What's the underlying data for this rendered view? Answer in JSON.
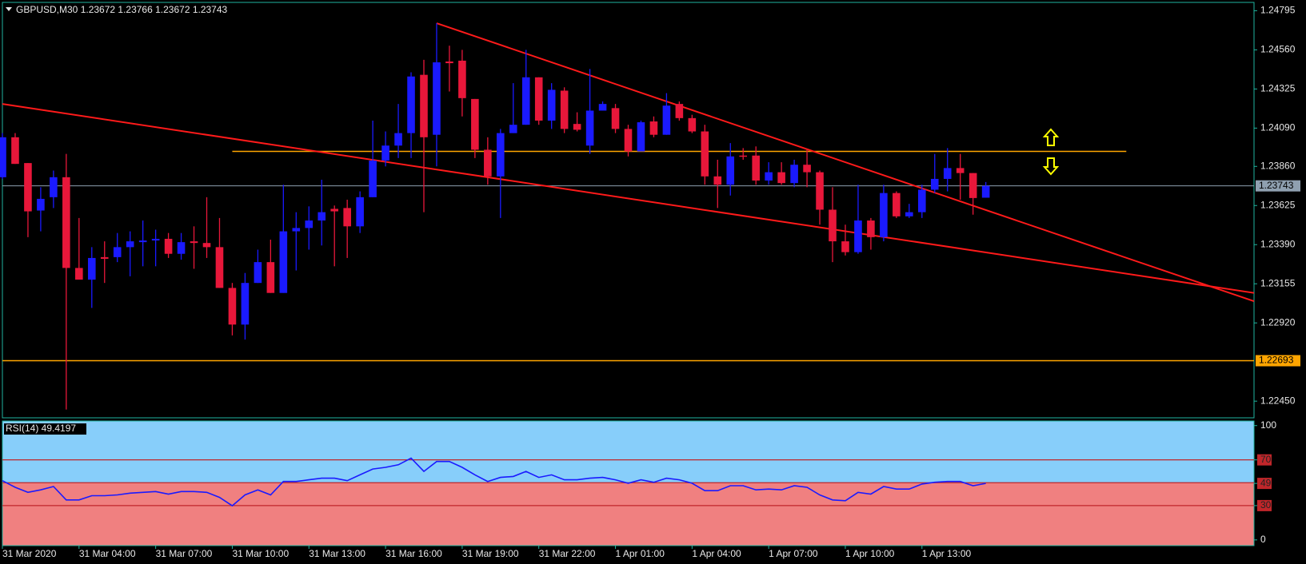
{
  "chart_data": [
    {
      "type": "candlestick",
      "title": "GBPUSD,M30  1.23672 1.23766 1.23672 1.23743",
      "categories": [
        "31 Mar 2020",
        null,
        null,
        null,
        null,
        null,
        "31 Mar 04:00",
        null,
        null,
        null,
        null,
        null,
        "31 Mar 07:00",
        null,
        null,
        null,
        null,
        null,
        "31 Mar 10:00",
        null,
        null,
        null,
        null,
        null,
        "31 Mar 13:00",
        null,
        null,
        null,
        null,
        null,
        "31 Mar 16:00",
        null,
        null,
        null,
        null,
        null,
        "31 Mar 19:00",
        null,
        null,
        null,
        null,
        null,
        "31 Mar 22:00",
        null,
        null,
        null,
        null,
        null,
        "1 Apr 01:00",
        null,
        null,
        null,
        null,
        null,
        "1 Apr 04:00",
        null,
        null,
        null,
        null,
        null,
        "1 Apr 07:00",
        null,
        null,
        null,
        null,
        null,
        "1 Apr 10:00",
        null,
        null,
        null,
        null,
        null,
        "1 Apr 13:00",
        null,
        null,
        null,
        null,
        null
      ],
      "open": [
        1.23795,
        1.24035,
        1.2388,
        1.23595,
        1.23675,
        1.23795,
        1.2325,
        1.2318,
        1.23315,
        1.23315,
        1.23375,
        1.23405,
        1.23415,
        1.23425,
        1.23335,
        1.2341,
        1.234,
        1.23375,
        1.2313,
        1.2291,
        1.2316,
        1.23285,
        1.231,
        1.2347,
        1.2349,
        1.23535,
        1.23605,
        1.2361,
        1.235,
        1.23675,
        1.23895,
        1.23985,
        1.2406,
        1.2441,
        1.2405,
        1.2449,
        1.24495,
        1.24265,
        1.2396,
        1.238,
        1.2406,
        1.2411,
        1.24395,
        1.24135,
        1.24315,
        1.24115,
        1.23985,
        1.24195,
        1.2421,
        1.24085,
        1.2395,
        1.2413,
        1.2405,
        1.24235,
        1.2415,
        1.2407,
        1.238,
        1.2375,
        1.23925,
        1.23925,
        1.23775,
        1.23825,
        1.2376,
        1.2387,
        1.23825,
        1.236,
        1.2341,
        1.23345,
        1.23535,
        1.23435,
        1.237,
        1.2356,
        1.23585,
        1.2372,
        1.23785,
        1.2385,
        1.2382,
        1.23672
      ],
      "high": [
        1.2406,
        1.2406,
        1.2388,
        1.23735,
        1.23835,
        1.23935,
        1.2355,
        1.23375,
        1.2341,
        1.2346,
        1.2347,
        1.23535,
        1.2348,
        1.2346,
        1.2346,
        1.235,
        1.23675,
        1.2355,
        1.2316,
        1.2322,
        1.2336,
        1.2342,
        1.2375,
        1.23585,
        1.2362,
        1.2378,
        1.23625,
        1.2366,
        1.2371,
        1.24135,
        1.2407,
        1.24235,
        1.24425,
        1.245,
        1.2472,
        1.24585,
        1.2456,
        1.24265,
        1.24035,
        1.24085,
        1.2436,
        1.2456,
        1.24395,
        1.2436,
        1.24335,
        1.24185,
        1.24445,
        1.2425,
        1.24235,
        1.2411,
        1.24135,
        1.2416,
        1.243,
        1.2425,
        1.2417,
        1.2411,
        1.239,
        1.24,
        1.2397,
        1.2398,
        1.23885,
        1.23885,
        1.239,
        1.2396,
        1.23835,
        1.23735,
        1.2351,
        1.2375,
        1.2355,
        1.2375,
        1.2371,
        1.23635,
        1.2375,
        1.23935,
        1.2397,
        1.23935,
        1.2382,
        1.23766
      ],
      "low": [
        1.23785,
        1.23875,
        1.23435,
        1.2347,
        1.2361,
        1.224,
        1.2318,
        1.2301,
        1.2316,
        1.23285,
        1.232,
        1.2326,
        1.2326,
        1.2331,
        1.233,
        1.23245,
        1.2331,
        1.2313,
        1.22845,
        1.2282,
        1.2316,
        1.231,
        1.231,
        1.23235,
        1.2336,
        1.23385,
        1.2326,
        1.2331,
        1.2346,
        1.23675,
        1.2386,
        1.2391,
        1.2391,
        1.23585,
        1.2386,
        1.2431,
        1.2416,
        1.2391,
        1.2375,
        1.2355,
        1.2406,
        1.2411,
        1.2411,
        1.24085,
        1.2406,
        1.2407,
        1.23935,
        1.24195,
        1.2406,
        1.2392,
        1.2395,
        1.24035,
        1.2405,
        1.24135,
        1.2406,
        1.2375,
        1.2361,
        1.23685,
        1.239,
        1.2375,
        1.2375,
        1.2375,
        1.23735,
        1.23735,
        1.2351,
        1.23285,
        1.23325,
        1.23335,
        1.2336,
        1.2341,
        1.2355,
        1.2355,
        1.2355,
        1.237,
        1.2371,
        1.2366,
        1.2357,
        1.23672
      ],
      "close": [
        1.24035,
        1.23875,
        1.2359,
        1.23665,
        1.23795,
        1.2325,
        1.2318,
        1.2331,
        1.23305,
        1.23375,
        1.2341,
        1.23415,
        1.23425,
        1.23335,
        1.23405,
        1.234,
        1.23375,
        1.2313,
        1.2291,
        1.2316,
        1.23285,
        1.231,
        1.2347,
        1.2349,
        1.23535,
        1.23585,
        1.2359,
        1.235,
        1.23675,
        1.23895,
        1.23985,
        1.2406,
        1.244,
        1.24035,
        1.24485,
        1.2448,
        1.2427,
        1.2396,
        1.238,
        1.2406,
        1.2411,
        1.24395,
        1.24135,
        1.2432,
        1.24085,
        1.2408,
        1.24195,
        1.24235,
        1.24085,
        1.2395,
        1.24125,
        1.2405,
        1.24225,
        1.2415,
        1.2407,
        1.238,
        1.2375,
        1.2392,
        1.2392,
        1.23775,
        1.23825,
        1.2376,
        1.2387,
        1.23825,
        1.236,
        1.2341,
        1.23345,
        1.23535,
        1.23435,
        1.237,
        1.2356,
        1.23585,
        1.2372,
        1.23785,
        1.2385,
        1.2382,
        1.2367,
        1.23743
      ],
      "up_color": "#1a1aff",
      "down_color": "#e8173a",
      "xlim": [
        0,
        98
      ],
      "ylim": [
        1.2235,
        1.24845
      ],
      "yticks": [
        1.24795,
        {
          "value": 1.2456,
          "label": "1.24560"
        },
        1.24325,
        {
          "value": 1.2409,
          "label": "1.24090"
        },
        {
          "value": 1.2386,
          "label": "1.23860"
        },
        1.23625,
        {
          "value": 1.2339,
          "label": "1.23390"
        },
        1.23155,
        {
          "value": 1.2292,
          "label": "1.22920"
        },
        {
          "value": 1.2245,
          "label": "1.22450"
        }
      ],
      "current_price_color": "#8fa0b0",
      "hlines": [
        {
          "value": 1.2395,
          "color": "#ffa500",
          "x": [
            18,
            88
          ]
        },
        {
          "value": 1.22693,
          "color": "#ffa500",
          "show_label": true
        }
      ],
      "trendlines": [
        {
          "x": [
            34,
            98
          ],
          "y": [
            1.2472,
            1.2305
          ],
          "color": "#ff1a1a"
        },
        {
          "x": [
            0,
            98
          ],
          "y": [
            1.24235,
            1.231
          ],
          "color": "#ff1a1a"
        }
      ]
    },
    {
      "type": "line",
      "title": "RSI(14) 49.4197",
      "values": [
        51.8,
        46.0,
        41.6,
        43.8,
        46.7,
        35.0,
        35.0,
        38.7,
        38.7,
        39.4,
        40.9,
        41.6,
        42.3,
        40.1,
        42.3,
        42.3,
        41.6,
        37.2,
        29.9,
        39.4,
        43.8,
        39.4,
        51.1,
        51.1,
        52.6,
        54.0,
        54.0,
        51.8,
        56.9,
        62.0,
        63.5,
        65.7,
        71.5,
        59.9,
        68.6,
        68.6,
        63.5,
        56.9,
        51.1,
        54.7,
        55.5,
        59.9,
        54.7,
        56.9,
        52.6,
        52.6,
        54.0,
        54.7,
        52.6,
        49.6,
        52.6,
        50.4,
        54.0,
        52.6,
        49.6,
        43.1,
        43.1,
        47.4,
        47.4,
        43.8,
        44.5,
        43.8,
        47.4,
        46.0,
        39.4,
        35.0,
        34.3,
        41.6,
        40.1,
        46.7,
        44.5,
        44.5,
        48.9,
        50.4,
        51.1,
        51.1,
        47.4,
        49.4197
      ],
      "color": "#1a1aff",
      "ylim": [
        -5,
        104
      ],
      "yticks": [
        0,
        30,
        {
          "value": 49.4197,
          "label": "49"
        },
        70,
        100
      ],
      "levels": [
        70,
        50,
        30
      ],
      "level_color": "#c0262a",
      "bg_colors": [
        "#87cefa",
        "#f08080"
      ]
    }
  ]
}
